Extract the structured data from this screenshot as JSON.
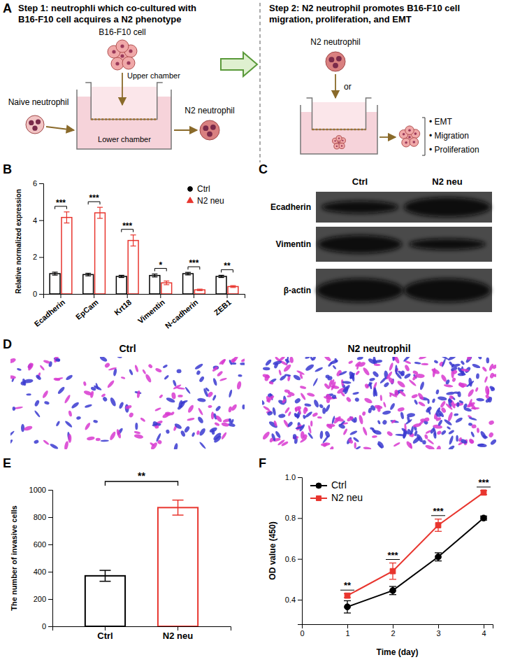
{
  "panel_a": {
    "label": "A",
    "step1": "Step 1: neutrophli which co-cultured with B16-F10 cell acquires a N2 phenotype",
    "step2": "Step 2: N2 neutrophil promotes B16-F10 cell migration, proliferation, and EMT",
    "b16_cell": "B16-F10 cell",
    "upper_chamber": "Upper chamber",
    "naive_neutrophil": "Naive neutrophil",
    "lower_chamber": "Lower chamber",
    "n2_neutrophil_out": "N2 neutrophil",
    "n2_neutrophil_in": "N2 neutrophil",
    "or": "or",
    "effects": [
      "• EMT",
      "• Migration",
      "• Proliferation"
    ]
  },
  "chart_data": [
    {
      "panel": "B",
      "type": "bar",
      "categories": [
        "Ecadherin",
        "EpCam",
        "Krt18",
        "Vimentin",
        "N-cadherin",
        "ZEB1"
      ],
      "series": [
        {
          "name": "Ctrl",
          "color": "#000000",
          "marker": "circle",
          "values": [
            1.1,
            1.05,
            0.95,
            1.0,
            1.1,
            0.95
          ],
          "errors": [
            0.08,
            0.07,
            0.06,
            0.08,
            0.07,
            0.06
          ]
        },
        {
          "name": "N2 neu",
          "color": "#e8352e",
          "marker": "triangle",
          "values": [
            4.15,
            4.4,
            2.9,
            0.6,
            0.22,
            0.4
          ],
          "errors": [
            0.3,
            0.3,
            0.3,
            0.1,
            0.04,
            0.05
          ]
        }
      ],
      "significance": [
        "***",
        "***",
        "***",
        "*",
        "***",
        "**"
      ],
      "y_label": "Relative normalized expression",
      "ylim": [
        0,
        6
      ],
      "yticks": [
        0,
        2,
        4,
        6
      ],
      "legend": "top-right"
    },
    {
      "panel": "E",
      "type": "bar",
      "categories": [
        "Ctrl",
        "N2 neu"
      ],
      "values": [
        370,
        870
      ],
      "errors": [
        40,
        55
      ],
      "colors": [
        "#000000",
        "#e8352e"
      ],
      "significance": "**",
      "y_label": "The number of invasive cells",
      "ylim": [
        0,
        1000
      ],
      "yticks": [
        0,
        200,
        400,
        600,
        800,
        1000
      ]
    },
    {
      "panel": "F",
      "type": "line",
      "x": [
        1,
        2,
        3,
        4
      ],
      "series": [
        {
          "name": "Ctrl",
          "color": "#000000",
          "marker": "circle",
          "values": [
            0.365,
            0.445,
            0.61,
            0.8
          ],
          "errors": [
            0.03,
            0.02,
            0.02,
            0.01
          ]
        },
        {
          "name": "N2 neu",
          "color": "#e8352e",
          "marker": "square",
          "values": [
            0.42,
            0.54,
            0.765,
            0.925
          ],
          "errors": [
            0.01,
            0.04,
            0.03,
            0.01
          ]
        }
      ],
      "significance": [
        "**",
        "***",
        "***",
        "***"
      ],
      "x_label": "Time (day)",
      "y_label": "OD value (450)",
      "xlim": [
        0,
        4.2
      ],
      "xticks": [
        0,
        1,
        2,
        3,
        4
      ],
      "ylim": [
        0.28,
        1.0
      ],
      "yticks": [
        0.4,
        0.6,
        0.8,
        {
          "value": 1.0,
          "label": "1.0"
        }
      ],
      "legend": "top-left"
    }
  ],
  "panel_c": {
    "label": "C",
    "columns": [
      "Ctrl",
      "N2 neu"
    ],
    "rows": [
      "Ecadherin",
      "Vimentin",
      "β-actin"
    ]
  },
  "panel_d": {
    "label": "D",
    "images": [
      "Ctrl",
      "N2 neutrophil"
    ]
  }
}
